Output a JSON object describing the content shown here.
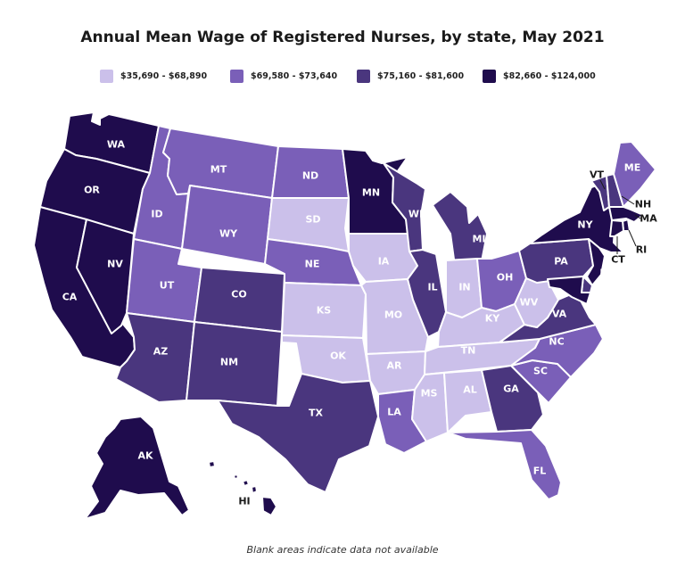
{
  "title": "Annual Mean Wage of Registered Nurses, by state, May 2021",
  "footnote": "Blank areas indicate data not available",
  "legend": [
    {
      "label": "$35,690 - $68,890",
      "color": "#cbc0ea"
    },
    {
      "label": "$69,580 - $73,640",
      "color": "#7a5fb8"
    },
    {
      "label": "$75,160 - $81,600",
      "color": "#4a367e"
    },
    {
      "label": "$82,660 - $124,000",
      "color": "#1f0c4d"
    }
  ],
  "states": [
    {
      "abbr": "WA",
      "bin": 3
    },
    {
      "abbr": "OR",
      "bin": 3
    },
    {
      "abbr": "CA",
      "bin": 3
    },
    {
      "abbr": "NV",
      "bin": 3
    },
    {
      "abbr": "ID",
      "bin": 1
    },
    {
      "abbr": "MT",
      "bin": 1
    },
    {
      "abbr": "WY",
      "bin": 1
    },
    {
      "abbr": "UT",
      "bin": 1
    },
    {
      "abbr": "AZ",
      "bin": 2
    },
    {
      "abbr": "CO",
      "bin": 2
    },
    {
      "abbr": "NM",
      "bin": 2
    },
    {
      "abbr": "ND",
      "bin": 1
    },
    {
      "abbr": "SD",
      "bin": 0
    },
    {
      "abbr": "NE",
      "bin": 1
    },
    {
      "abbr": "KS",
      "bin": 0
    },
    {
      "abbr": "OK",
      "bin": 0
    },
    {
      "abbr": "TX",
      "bin": 2
    },
    {
      "abbr": "MN",
      "bin": 3
    },
    {
      "abbr": "IA",
      "bin": 0
    },
    {
      "abbr": "MO",
      "bin": 0
    },
    {
      "abbr": "AR",
      "bin": 0
    },
    {
      "abbr": "LA",
      "bin": 1
    },
    {
      "abbr": "WI",
      "bin": 2
    },
    {
      "abbr": "IL",
      "bin": 2
    },
    {
      "abbr": "MI",
      "bin": 2
    },
    {
      "abbr": "IN",
      "bin": 0
    },
    {
      "abbr": "OH",
      "bin": 1
    },
    {
      "abbr": "KY",
      "bin": 0
    },
    {
      "abbr": "TN",
      "bin": 0
    },
    {
      "abbr": "MS",
      "bin": 0
    },
    {
      "abbr": "AL",
      "bin": 0
    },
    {
      "abbr": "GA",
      "bin": 2
    },
    {
      "abbr": "FL",
      "bin": 1
    },
    {
      "abbr": "SC",
      "bin": 1
    },
    {
      "abbr": "NC",
      "bin": 1
    },
    {
      "abbr": "VA",
      "bin": 2
    },
    {
      "abbr": "WV",
      "bin": 0
    },
    {
      "abbr": "PA",
      "bin": 2
    },
    {
      "abbr": "NY",
      "bin": 3
    },
    {
      "abbr": "VT",
      "bin": 2
    },
    {
      "abbr": "NH",
      "bin": 2
    },
    {
      "abbr": "ME",
      "bin": 1
    },
    {
      "abbr": "MA",
      "bin": 3
    },
    {
      "abbr": "RI",
      "bin": 3
    },
    {
      "abbr": "CT",
      "bin": 3
    },
    {
      "abbr": "NJ",
      "bin": 3
    },
    {
      "abbr": "DE",
      "bin": 2
    },
    {
      "abbr": "MD",
      "bin": 3
    },
    {
      "abbr": "AK",
      "bin": 3
    },
    {
      "abbr": "HI",
      "bin": 3
    }
  ]
}
